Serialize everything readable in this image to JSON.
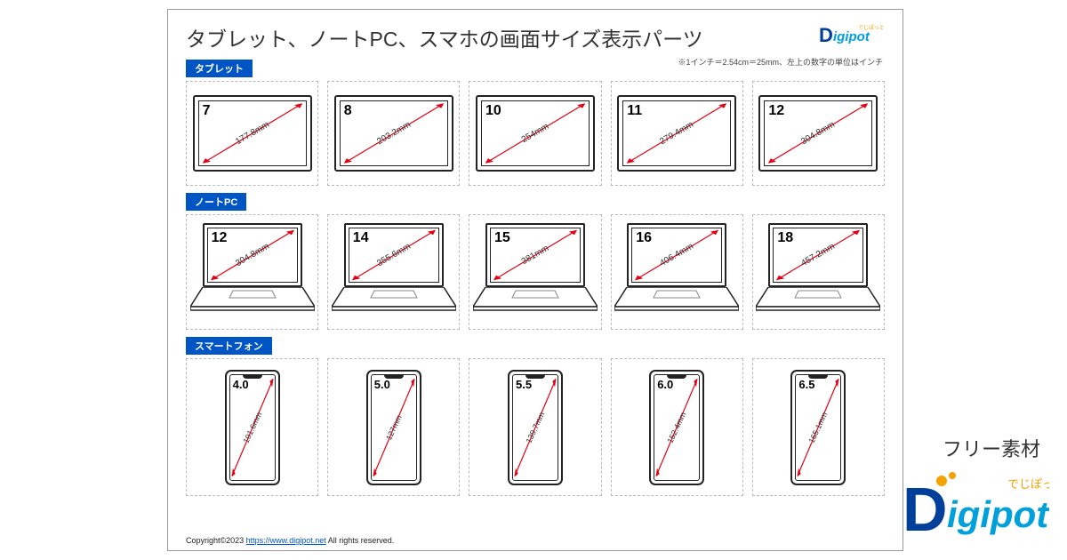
{
  "title": "タブレット、ノートPC、スマホの画面サイズ表示パーツ",
  "note": "※1インチ＝2.54cm＝25mm、左上の数字の単位はインチ",
  "brand": {
    "name": "Digipot",
    "tagline": "でじぽっと"
  },
  "side_label": "フリー素材",
  "copyright_prefix": "Copyright©2023 ",
  "copyright_link": "https://www.digipot.net",
  "copyright_suffix": " All rights reserved.",
  "colors": {
    "label_bg": "#0055c4",
    "arrow": "#e60012",
    "border": "#222222",
    "dashed": "#bbbbbb",
    "logo_d": "#003f9a",
    "logo_text": "#00a0dc",
    "logo_accent": "#f5a100"
  },
  "sections": [
    {
      "key": "tablets",
      "label": "タブレット",
      "type": "tablet",
      "items": [
        {
          "inch": "7",
          "mm": "177.8mm"
        },
        {
          "inch": "8",
          "mm": "203.2mm"
        },
        {
          "inch": "10",
          "mm": "254mm"
        },
        {
          "inch": "11",
          "mm": "279.4mm"
        },
        {
          "inch": "12",
          "mm": "304.8mm"
        }
      ]
    },
    {
      "key": "laptops",
      "label": "ノートPC",
      "type": "laptop",
      "items": [
        {
          "inch": "12",
          "mm": "304.8mm"
        },
        {
          "inch": "14",
          "mm": "355.6mm"
        },
        {
          "inch": "15",
          "mm": "381mm"
        },
        {
          "inch": "16",
          "mm": "406.4mm"
        },
        {
          "inch": "18",
          "mm": "457.2mm"
        }
      ]
    },
    {
      "key": "phones",
      "label": "スマートフォン",
      "type": "phone",
      "items": [
        {
          "inch": "4.0",
          "mm": "101.6mm"
        },
        {
          "inch": "5.0",
          "mm": "127mm"
        },
        {
          "inch": "5.5",
          "mm": "139.7mm"
        },
        {
          "inch": "6.0",
          "mm": "152.4mm"
        },
        {
          "inch": "6.5",
          "mm": "165.1mm"
        }
      ]
    }
  ]
}
